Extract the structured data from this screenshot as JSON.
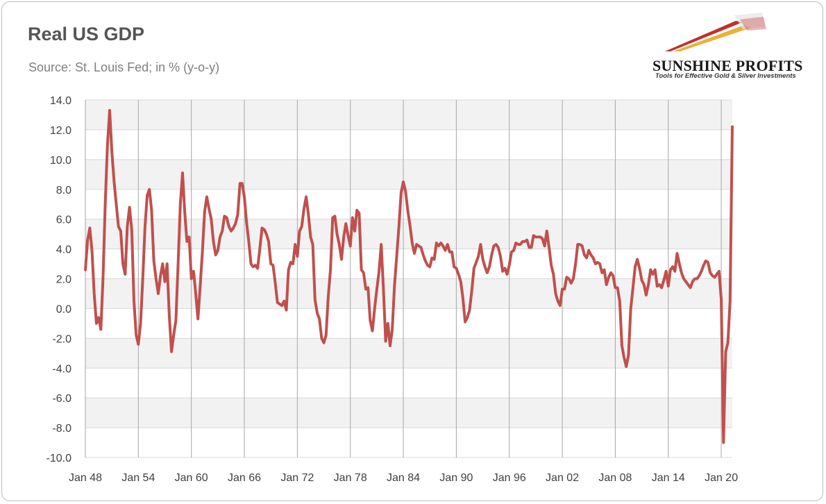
{
  "header": {
    "title": "Real US GDP",
    "subtitle": "Source: St. Louis Fed; in % (y-o-y)"
  },
  "logo": {
    "name": "SUNSHINE PROFITS",
    "tagline": "Tools for Effective Gold & Silver Investments",
    "colors": {
      "red": "#c0302f",
      "gold": "#e8b23a",
      "dark": "#1a1a1a"
    }
  },
  "chart_data": {
    "type": "line",
    "title": "Real US GDP",
    "subtitle": "Source: St. Louis Fed; in % (y-o-y)",
    "xlabel": "",
    "ylabel": "",
    "ylim": [
      -10,
      14
    ],
    "y_ticks": [
      "14.0",
      "12.0",
      "10.0",
      "8.0",
      "6.0",
      "4.0",
      "2.0",
      "0.0",
      "-2.0",
      "-4.0",
      "-6.0",
      "-8.0",
      "-10.0"
    ],
    "x_range": [
      1948.0,
      1948.0,
      2021.25
    ],
    "x_ticks": [
      {
        "label": "Jan 48",
        "year": 1948
      },
      {
        "label": "Jan 54",
        "year": 1954
      },
      {
        "label": "Jan 60",
        "year": 1960
      },
      {
        "label": "Jan 66",
        "year": 1966
      },
      {
        "label": "Jan 72",
        "year": 1972
      },
      {
        "label": "Jan 78",
        "year": 1978
      },
      {
        "label": "Jan 84",
        "year": 1984
      },
      {
        "label": "Jan 90",
        "year": 1990
      },
      {
        "label": "Jan 96",
        "year": 1996
      },
      {
        "label": "Jan 02",
        "year": 2002
      },
      {
        "label": "Jan 08",
        "year": 2008
      },
      {
        "label": "Jan 14",
        "year": 2014
      },
      {
        "label": "Jan 20",
        "year": 2020
      }
    ],
    "grid": true,
    "legend": "none",
    "series": [
      {
        "color": "#c0504d",
        "points": [
          [
            1948.0,
            2.6
          ],
          [
            1948.25,
            4.6
          ],
          [
            1948.5,
            5.4
          ],
          [
            1948.75,
            3.9
          ],
          [
            1949.0,
            1.0
          ],
          [
            1949.25,
            -1.0
          ],
          [
            1949.5,
            -0.6
          ],
          [
            1949.75,
            -1.4
          ],
          [
            1950.0,
            2.0
          ],
          [
            1950.25,
            7.0
          ],
          [
            1950.5,
            11.0
          ],
          [
            1950.75,
            13.3
          ],
          [
            1951.0,
            10.5
          ],
          [
            1951.25,
            8.5
          ],
          [
            1951.5,
            7.0
          ],
          [
            1951.75,
            5.5
          ],
          [
            1952.0,
            5.2
          ],
          [
            1952.25,
            3.0
          ],
          [
            1952.5,
            2.3
          ],
          [
            1952.75,
            5.5
          ],
          [
            1953.0,
            6.8
          ],
          [
            1953.25,
            5.3
          ],
          [
            1953.5,
            0.5
          ],
          [
            1953.75,
            -1.8
          ],
          [
            1954.0,
            -2.4
          ],
          [
            1954.25,
            -1.0
          ],
          [
            1954.5,
            2.0
          ],
          [
            1954.75,
            5.5
          ],
          [
            1955.0,
            7.6
          ],
          [
            1955.25,
            8.0
          ],
          [
            1955.5,
            6.6
          ],
          [
            1955.75,
            3.2
          ],
          [
            1956.0,
            2.0
          ],
          [
            1956.25,
            1.0
          ],
          [
            1956.5,
            2.2
          ],
          [
            1956.75,
            3.0
          ],
          [
            1957.0,
            1.8
          ],
          [
            1957.25,
            3.0
          ],
          [
            1957.5,
            -0.5
          ],
          [
            1957.75,
            -2.9
          ],
          [
            1958.0,
            -1.8
          ],
          [
            1958.25,
            -0.8
          ],
          [
            1958.5,
            3.0
          ],
          [
            1958.75,
            7.0
          ],
          [
            1959.0,
            9.1
          ],
          [
            1959.25,
            6.5
          ],
          [
            1959.5,
            4.5
          ],
          [
            1959.75,
            4.8
          ],
          [
            1960.0,
            2.0
          ],
          [
            1960.25,
            2.5
          ],
          [
            1960.5,
            1.0
          ],
          [
            1960.75,
            -0.7
          ],
          [
            1961.0,
            1.5
          ],
          [
            1961.25,
            3.8
          ],
          [
            1961.5,
            6.5
          ],
          [
            1961.75,
            7.5
          ],
          [
            1962.0,
            6.7
          ],
          [
            1962.25,
            6.0
          ],
          [
            1962.5,
            4.5
          ],
          [
            1962.75,
            3.6
          ],
          [
            1963.0,
            3.9
          ],
          [
            1963.25,
            4.8
          ],
          [
            1963.5,
            5.2
          ],
          [
            1963.75,
            6.2
          ],
          [
            1964.0,
            6.1
          ],
          [
            1964.25,
            5.5
          ],
          [
            1964.5,
            5.2
          ],
          [
            1964.75,
            5.4
          ],
          [
            1965.0,
            5.7
          ],
          [
            1965.25,
            6.3
          ],
          [
            1965.5,
            8.4
          ],
          [
            1965.75,
            8.4
          ],
          [
            1966.0,
            7.5
          ],
          [
            1966.25,
            5.8
          ],
          [
            1966.5,
            4.5
          ],
          [
            1966.75,
            3.0
          ],
          [
            1967.0,
            2.8
          ],
          [
            1967.25,
            2.9
          ],
          [
            1967.5,
            2.7
          ],
          [
            1967.75,
            4.0
          ],
          [
            1968.0,
            5.4
          ],
          [
            1968.25,
            5.3
          ],
          [
            1968.5,
            5.0
          ],
          [
            1968.75,
            4.5
          ],
          [
            1969.0,
            3.0
          ],
          [
            1969.25,
            2.9
          ],
          [
            1969.5,
            1.7
          ],
          [
            1969.75,
            0.4
          ],
          [
            1970.0,
            0.3
          ],
          [
            1970.25,
            0.2
          ],
          [
            1970.5,
            0.5
          ],
          [
            1970.75,
            -0.1
          ],
          [
            1971.0,
            2.6
          ],
          [
            1971.25,
            3.1
          ],
          [
            1971.5,
            3.0
          ],
          [
            1971.75,
            4.3
          ],
          [
            1972.0,
            3.5
          ],
          [
            1972.25,
            5.2
          ],
          [
            1972.5,
            5.5
          ],
          [
            1972.75,
            6.7
          ],
          [
            1973.0,
            7.5
          ],
          [
            1973.25,
            6.3
          ],
          [
            1973.5,
            4.8
          ],
          [
            1973.75,
            4.3
          ],
          [
            1974.0,
            0.6
          ],
          [
            1974.25,
            -0.3
          ],
          [
            1974.5,
            -0.7
          ],
          [
            1974.75,
            -2.0
          ],
          [
            1975.0,
            -2.3
          ],
          [
            1975.25,
            -1.8
          ],
          [
            1975.5,
            0.8
          ],
          [
            1975.75,
            2.6
          ],
          [
            1976.0,
            6.1
          ],
          [
            1976.25,
            6.2
          ],
          [
            1976.5,
            5.0
          ],
          [
            1976.75,
            4.3
          ],
          [
            1977.0,
            3.3
          ],
          [
            1977.25,
            4.8
          ],
          [
            1977.5,
            5.7
          ],
          [
            1977.75,
            4.9
          ],
          [
            1978.0,
            4.2
          ],
          [
            1978.25,
            6.1
          ],
          [
            1978.5,
            5.2
          ],
          [
            1978.75,
            6.6
          ],
          [
            1979.0,
            6.4
          ],
          [
            1979.25,
            2.6
          ],
          [
            1979.5,
            2.4
          ],
          [
            1979.75,
            1.3
          ],
          [
            1980.0,
            1.4
          ],
          [
            1980.25,
            -0.8
          ],
          [
            1980.5,
            -1.5
          ],
          [
            1980.75,
            0.0
          ],
          [
            1981.0,
            1.3
          ],
          [
            1981.25,
            2.5
          ],
          [
            1981.5,
            4.3
          ],
          [
            1981.75,
            1.3
          ],
          [
            1982.0,
            -2.2
          ],
          [
            1982.25,
            -1.0
          ],
          [
            1982.5,
            -2.5
          ],
          [
            1982.75,
            -1.4
          ],
          [
            1983.0,
            1.5
          ],
          [
            1983.25,
            3.5
          ],
          [
            1983.5,
            5.5
          ],
          [
            1983.75,
            7.8
          ],
          [
            1984.0,
            8.5
          ],
          [
            1984.25,
            7.9
          ],
          [
            1984.5,
            6.6
          ],
          [
            1984.75,
            5.6
          ],
          [
            1985.0,
            4.4
          ],
          [
            1985.25,
            3.7
          ],
          [
            1985.5,
            4.3
          ],
          [
            1985.75,
            4.2
          ],
          [
            1986.0,
            4.1
          ],
          [
            1986.25,
            3.6
          ],
          [
            1986.5,
            3.2
          ],
          [
            1986.75,
            2.9
          ],
          [
            1987.0,
            2.8
          ],
          [
            1987.25,
            3.4
          ],
          [
            1987.5,
            3.3
          ],
          [
            1987.75,
            4.4
          ],
          [
            1988.0,
            4.2
          ],
          [
            1988.25,
            4.4
          ],
          [
            1988.5,
            4.2
          ],
          [
            1988.75,
            3.9
          ],
          [
            1989.0,
            4.3
          ],
          [
            1989.25,
            3.8
          ],
          [
            1989.5,
            3.8
          ],
          [
            1989.75,
            2.8
          ],
          [
            1990.0,
            2.7
          ],
          [
            1990.25,
            2.3
          ],
          [
            1990.5,
            1.8
          ],
          [
            1990.75,
            0.7
          ],
          [
            1991.0,
            -0.9
          ],
          [
            1991.25,
            -0.6
          ],
          [
            1991.5,
            -0.1
          ],
          [
            1991.75,
            1.2
          ],
          [
            1992.0,
            2.7
          ],
          [
            1992.25,
            3.1
          ],
          [
            1992.5,
            3.5
          ],
          [
            1992.75,
            4.3
          ],
          [
            1993.0,
            3.3
          ],
          [
            1993.25,
            2.8
          ],
          [
            1993.5,
            2.4
          ],
          [
            1993.75,
            2.8
          ],
          [
            1994.0,
            3.6
          ],
          [
            1994.25,
            4.2
          ],
          [
            1994.5,
            4.3
          ],
          [
            1994.75,
            4.1
          ],
          [
            1995.0,
            3.5
          ],
          [
            1995.25,
            2.5
          ],
          [
            1995.5,
            2.7
          ],
          [
            1995.75,
            2.3
          ],
          [
            1996.0,
            2.9
          ],
          [
            1996.25,
            3.8
          ],
          [
            1996.5,
            3.9
          ],
          [
            1996.75,
            4.4
          ],
          [
            1997.0,
            4.3
          ],
          [
            1997.25,
            4.3
          ],
          [
            1997.5,
            4.5
          ],
          [
            1997.75,
            4.5
          ],
          [
            1998.0,
            4.6
          ],
          [
            1998.25,
            4.1
          ],
          [
            1998.5,
            4.1
          ],
          [
            1998.75,
            4.9
          ],
          [
            1999.0,
            4.8
          ],
          [
            1999.25,
            4.8
          ],
          [
            1999.5,
            4.8
          ],
          [
            1999.75,
            4.7
          ],
          [
            2000.0,
            4.2
          ],
          [
            2000.25,
            5.2
          ],
          [
            2000.5,
            4.1
          ],
          [
            2000.75,
            2.9
          ],
          [
            2001.0,
            2.3
          ],
          [
            2001.25,
            1.0
          ],
          [
            2001.5,
            0.5
          ],
          [
            2001.75,
            0.2
          ],
          [
            2002.0,
            1.3
          ],
          [
            2002.25,
            1.3
          ],
          [
            2002.5,
            2.1
          ],
          [
            2002.75,
            2.0
          ],
          [
            2003.0,
            1.7
          ],
          [
            2003.25,
            2.0
          ],
          [
            2003.5,
            3.0
          ],
          [
            2003.75,
            4.3
          ],
          [
            2004.0,
            4.3
          ],
          [
            2004.25,
            4.2
          ],
          [
            2004.5,
            3.6
          ],
          [
            2004.75,
            3.4
          ],
          [
            2005.0,
            3.9
          ],
          [
            2005.25,
            3.6
          ],
          [
            2005.5,
            3.4
          ],
          [
            2005.75,
            3.0
          ],
          [
            2006.0,
            3.1
          ],
          [
            2006.25,
            3.0
          ],
          [
            2006.5,
            2.4
          ],
          [
            2006.75,
            2.6
          ],
          [
            2007.0,
            1.6
          ],
          [
            2007.25,
            2.1
          ],
          [
            2007.5,
            2.4
          ],
          [
            2007.75,
            2.2
          ],
          [
            2008.0,
            1.4
          ],
          [
            2008.25,
            1.4
          ],
          [
            2008.5,
            0.5
          ],
          [
            2008.75,
            -2.5
          ],
          [
            2009.0,
            -3.3
          ],
          [
            2009.25,
            -3.9
          ],
          [
            2009.5,
            -3.1
          ],
          [
            2009.75,
            0.0
          ],
          [
            2010.0,
            1.4
          ],
          [
            2010.25,
            2.8
          ],
          [
            2010.5,
            3.3
          ],
          [
            2010.75,
            2.7
          ],
          [
            2011.0,
            1.9
          ],
          [
            2011.25,
            1.6
          ],
          [
            2011.5,
            0.9
          ],
          [
            2011.75,
            1.6
          ],
          [
            2012.0,
            2.6
          ],
          [
            2012.25,
            2.3
          ],
          [
            2012.5,
            2.6
          ],
          [
            2012.75,
            1.5
          ],
          [
            2013.0,
            1.6
          ],
          [
            2013.25,
            1.4
          ],
          [
            2013.5,
            1.9
          ],
          [
            2013.75,
            2.5
          ],
          [
            2014.0,
            1.5
          ],
          [
            2014.25,
            2.6
          ],
          [
            2014.5,
            2.8
          ],
          [
            2014.75,
            2.5
          ],
          [
            2015.0,
            3.7
          ],
          [
            2015.25,
            3.0
          ],
          [
            2015.5,
            2.4
          ],
          [
            2015.75,
            2.0
          ],
          [
            2016.0,
            1.8
          ],
          [
            2016.25,
            1.6
          ],
          [
            2016.5,
            1.4
          ],
          [
            2016.75,
            1.8
          ],
          [
            2017.0,
            2.0
          ],
          [
            2017.25,
            2.0
          ],
          [
            2017.5,
            2.2
          ],
          [
            2017.75,
            2.5
          ],
          [
            2018.0,
            2.9
          ],
          [
            2018.25,
            3.2
          ],
          [
            2018.5,
            3.1
          ],
          [
            2018.75,
            2.4
          ],
          [
            2019.0,
            2.2
          ],
          [
            2019.25,
            2.1
          ],
          [
            2019.5,
            2.3
          ],
          [
            2019.75,
            2.5
          ],
          [
            2020.0,
            0.6
          ],
          [
            2020.25,
            -9.0
          ],
          [
            2020.5,
            -2.9
          ],
          [
            2020.75,
            -2.3
          ],
          [
            2021.0,
            0.5
          ],
          [
            2021.25,
            12.2
          ]
        ]
      }
    ]
  }
}
